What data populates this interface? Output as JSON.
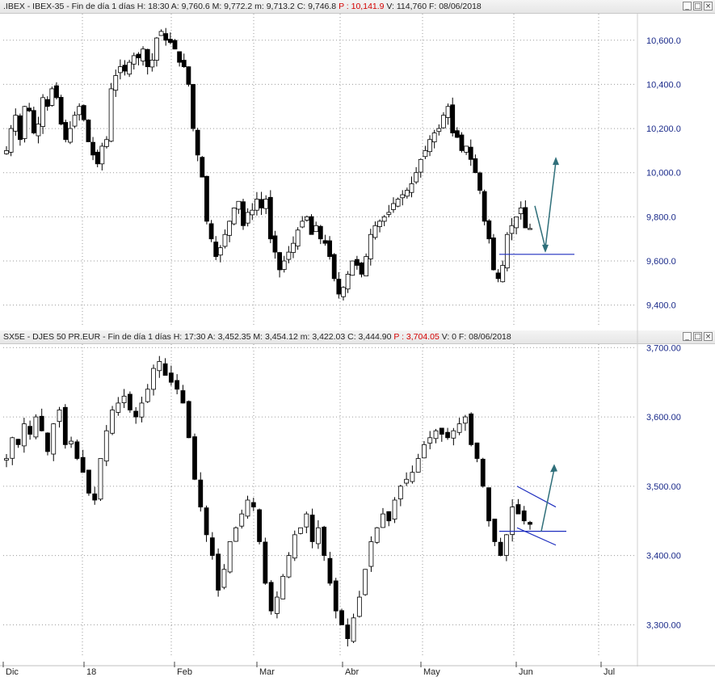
{
  "header_top": {
    "name": ".IBEX - IBEX-35 - Fin de día 1 días",
    "h": "H: 18:30",
    "a": "A: 9,760.6",
    "m": "M: 9,772.2",
    "mn": "m: 9,713.2",
    "c": "C: 9,746.8",
    "p": "P : 10,141.9",
    "v": "V: 114,760",
    "f": "F: 08/06/2018"
  },
  "header_bottom": {
    "name": "SX5E - DJES 50 PR.EUR - Fin de día 1 días",
    "h": "H: 17:30",
    "a": "A: 3,452.35",
    "m": "M: 3,454.12",
    "mn": "m: 3,422.03",
    "c": "C: 3,444.90",
    "p": "P : 3,704.05",
    "v": "V: 0",
    "f": "F: 08/06/2018"
  },
  "window_buttons": {
    "minimize": "_",
    "maximize": "□",
    "close": "×"
  },
  "colors": {
    "up": "#ffffff",
    "down": "#000000",
    "wick": "#000000",
    "support": "#1f2fbf",
    "arrow": "#2f6f7a",
    "grid": "#9a9a9a"
  },
  "x_axis": {
    "labels": [
      "Dic",
      "18",
      "Feb",
      "Mar",
      "Abr",
      "May",
      "Jun",
      "Jul"
    ]
  },
  "chart_data": [
    {
      "type": "candlestick",
      "title": ".IBEX - IBEX-35",
      "ylim": [
        9300,
        10720
      ],
      "y_ticks": [
        "10,600.0",
        "10,400.0",
        "10,200.0",
        "10,000.0",
        "9,800.0",
        "9,600.0",
        "9,400.0"
      ],
      "y_tick_values": [
        10600,
        10400,
        10200,
        10000,
        9800,
        9600,
        9400
      ],
      "close": [
        10100,
        10200,
        10260,
        10150,
        10300,
        10280,
        10180,
        10220,
        10340,
        10300,
        10380,
        10340,
        10220,
        10150,
        10200,
        10260,
        10300,
        10240,
        10140,
        10080,
        10040,
        10120,
        10150,
        10380,
        10440,
        10480,
        10460,
        10500,
        10530,
        10520,
        10560,
        10480,
        10510,
        10610,
        10640,
        10600,
        10590,
        10560,
        10500,
        10480,
        10400,
        10200,
        10080,
        9980,
        9780,
        9700,
        9620,
        9660,
        9720,
        9780,
        9840,
        9870,
        9760,
        9820,
        9830,
        9880,
        9840,
        9880,
        9700,
        9640,
        9560,
        9600,
        9640,
        9680,
        9740,
        9780,
        9800,
        9720,
        9760,
        9700,
        9680,
        9620,
        9520,
        9450,
        9480,
        9540,
        9600,
        9580,
        9540,
        9620,
        9720,
        9760,
        9780,
        9800,
        9820,
        9860,
        9880,
        9900,
        9920,
        9950,
        10000,
        10060,
        10100,
        10150,
        10180,
        10200,
        10260,
        10300,
        10180,
        10160,
        10100,
        10120,
        10060,
        10000,
        9920,
        9780,
        9700,
        9560,
        9520,
        9580,
        9720,
        9760,
        9800,
        9840,
        9750,
        9747
      ],
      "support": 9630
    },
    {
      "type": "candlestick",
      "title": "SX5E - DJES 50 PR.EUR",
      "ylim": [
        3255,
        3705
      ],
      "y_ticks": [
        "3,700.00",
        "3,600.00",
        "3,500.00",
        "3,400.00",
        "3,300.00"
      ],
      "y_tick_values": [
        3700,
        3600,
        3500,
        3400,
        3300
      ],
      "close": [
        3540,
        3570,
        3560,
        3590,
        3575,
        3600,
        3580,
        3550,
        3590,
        3610,
        3560,
        3565,
        3540,
        3520,
        3490,
        3480,
        3540,
        3580,
        3610,
        3620,
        3630,
        3610,
        3600,
        3620,
        3640,
        3670,
        3680,
        3660,
        3650,
        3640,
        3620,
        3570,
        3510,
        3470,
        3430,
        3400,
        3350,
        3380,
        3420,
        3440,
        3460,
        3480,
        3470,
        3420,
        3360,
        3320,
        3340,
        3370,
        3400,
        3430,
        3440,
        3460,
        3420,
        3440,
        3400,
        3360,
        3320,
        3300,
        3280,
        3310,
        3340,
        3380,
        3420,
        3440,
        3460,
        3450,
        3480,
        3500,
        3510,
        3520,
        3540,
        3560,
        3570,
        3580,
        3575,
        3570,
        3580,
        3590,
        3600,
        3560,
        3540,
        3500,
        3450,
        3420,
        3400,
        3430,
        3470,
        3460,
        3450,
        3445
      ],
      "pattern_lines": [
        [
          3500,
          3470
        ],
        [
          3440,
          3415
        ]
      ],
      "support": 3435
    }
  ]
}
